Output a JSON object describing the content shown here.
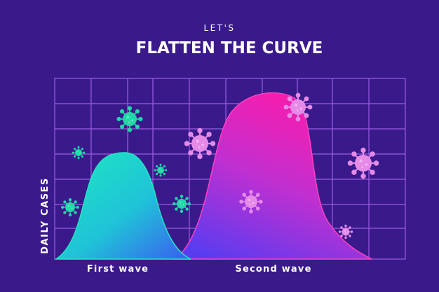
{
  "header": {
    "kicker": "LET'S",
    "title": "FLATTEN THE CURVE"
  },
  "axis": {
    "y_label": "DAILY CASES"
  },
  "labels": {
    "first": "First wave",
    "second": "Second wave"
  }
}
